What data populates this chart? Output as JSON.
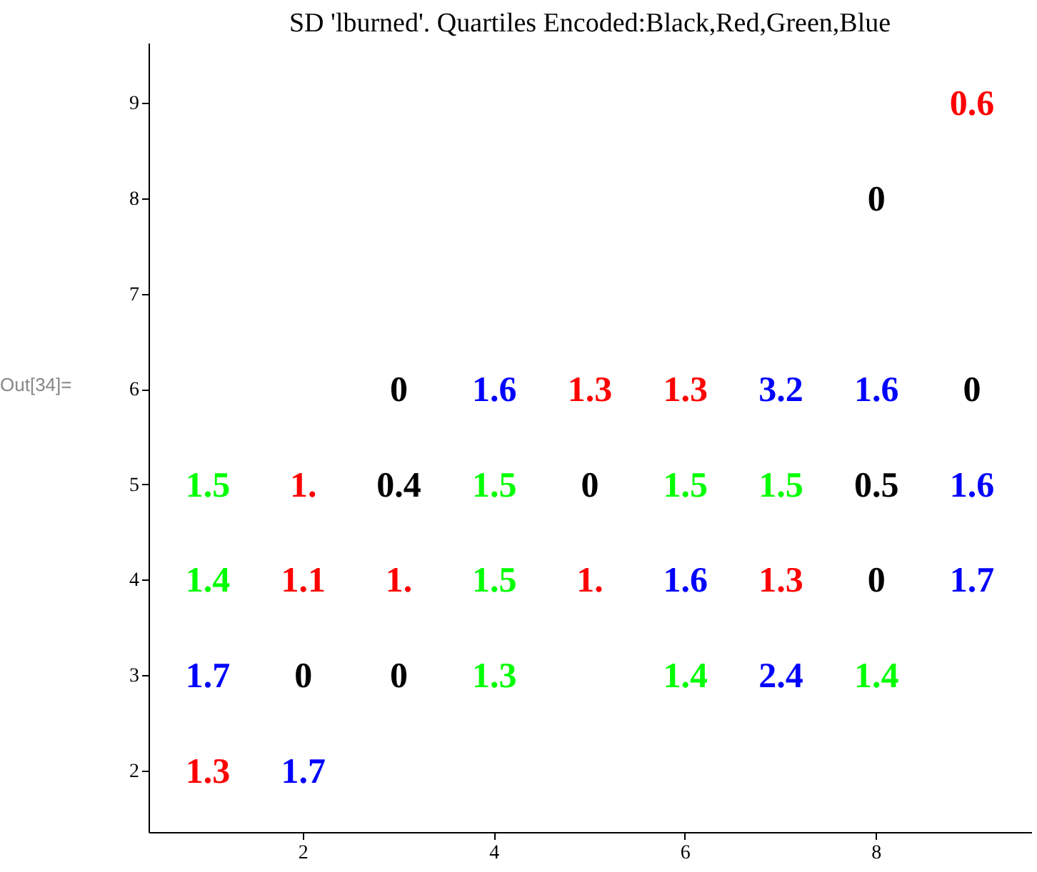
{
  "chart_data": {
    "type": "heatmap",
    "title": "SD 'lburned'. Quartiles Encoded:Black,Red,Green,Blue",
    "annotations": [
      "Out[34]="
    ],
    "categories": [
      null,
      "2",
      null,
      "4",
      null,
      "6",
      null,
      "8",
      null
    ],
    "data_labels": true,
    "cell_labels": [
      [
        null,
        null,
        null,
        null,
        null,
        null,
        null,
        null,
        "0.6"
      ],
      [
        null,
        null,
        null,
        null,
        null,
        null,
        null,
        "0",
        null
      ],
      [
        null,
        null,
        null,
        null,
        null,
        null,
        null,
        null,
        null
      ],
      [
        null,
        null,
        "0",
        "1.6",
        "1.3",
        "1.3",
        "3.2",
        "1.6",
        "0"
      ],
      [
        "1.5",
        "1.",
        "0.4",
        "1.5",
        "0",
        "1.5",
        "1.5",
        "0.5",
        "1.6"
      ],
      [
        "1.4",
        "1.1",
        "1.",
        "1.5",
        "1.",
        "1.6",
        "1.3",
        "0",
        "1.7"
      ],
      [
        "1.7",
        "0",
        "0",
        "1.3",
        null,
        "1.4",
        "2.4",
        "1.4",
        null
      ],
      [
        "1.3",
        "1.7",
        null,
        null,
        null,
        null,
        null,
        null,
        null
      ]
    ],
    "y_categories": [
      "9",
      "8",
      "7",
      "6",
      "5",
      "4",
      "3",
      "2"
    ],
    "cells": [
      [
        null,
        null,
        null,
        null,
        null,
        null,
        null,
        null,
        0.6
      ],
      [
        null,
        null,
        null,
        null,
        null,
        null,
        null,
        0,
        null
      ],
      [
        null,
        null,
        null,
        null,
        null,
        null,
        null,
        null,
        null
      ],
      [
        null,
        null,
        0,
        1.6,
        1.3,
        1.3,
        3.2,
        1.6,
        0
      ],
      [
        1.5,
        1.0,
        0.4,
        1.5,
        0,
        1.5,
        1.5,
        0.5,
        1.6
      ],
      [
        1.4,
        1.1,
        1.0,
        1.5,
        1.0,
        1.6,
        1.3,
        0,
        1.7
      ],
      [
        1.7,
        0,
        0,
        1.3,
        null,
        1.4,
        2.4,
        1.4,
        null
      ],
      [
        1.3,
        1.7,
        null,
        null,
        null,
        null,
        null,
        null,
        null
      ]
    ],
    "colors": [
      [
        null,
        null,
        null,
        null,
        null,
        null,
        null,
        null,
        "#ff0000"
      ],
      [
        null,
        null,
        null,
        null,
        null,
        null,
        null,
        "#000000",
        null
      ],
      [
        null,
        null,
        null,
        null,
        null,
        null,
        null,
        null,
        null
      ],
      [
        null,
        null,
        "#000000",
        "#0000ff",
        "#ff0000",
        "#ff0000",
        "#0000ff",
        "#0000ff",
        "#000000"
      ],
      [
        "#00ff00",
        "#ff0000",
        "#000000",
        "#00ff00",
        "#000000",
        "#00ff00",
        "#00ff00",
        "#000000",
        "#0000ff"
      ],
      [
        "#00ff00",
        "#ff0000",
        "#ff0000",
        "#00ff00",
        "#ff0000",
        "#0000ff",
        "#ff0000",
        "#000000",
        "#0000ff"
      ],
      [
        "#0000ff",
        "#000000",
        "#000000",
        "#00ff00",
        null,
        "#00ff00",
        "#0000ff",
        "#00ff00",
        null
      ],
      [
        "#ff0000",
        "#0000ff",
        null,
        null,
        null,
        null,
        null,
        null,
        null
      ]
    ]
  }
}
